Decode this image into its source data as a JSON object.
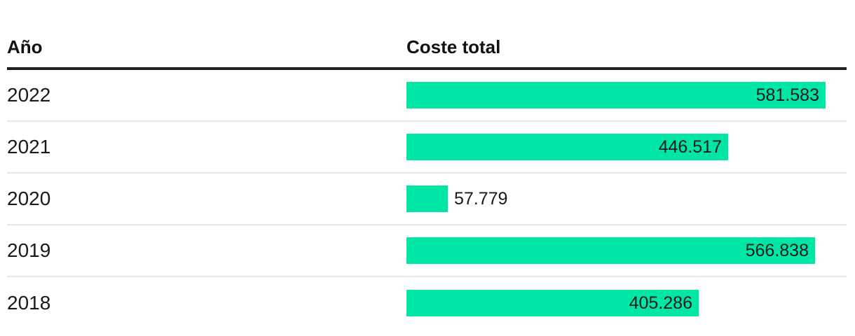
{
  "table": {
    "columns": [
      {
        "label": "Año"
      },
      {
        "label": "Coste total"
      }
    ],
    "rows": [
      {
        "year": "2022",
        "value": 581583,
        "value_label": "581.583"
      },
      {
        "year": "2021",
        "value": 446517,
        "value_label": "446.517"
      },
      {
        "year": "2020",
        "value": 57779,
        "value_label": "57.779"
      },
      {
        "year": "2019",
        "value": 566838,
        "value_label": "566.838"
      },
      {
        "year": "2018",
        "value": 405286,
        "value_label": "405.286"
      }
    ]
  },
  "chart_data": {
    "type": "bar",
    "orientation": "horizontal",
    "title": "",
    "xlabel": "Coste total",
    "ylabel": "Año",
    "categories": [
      "2022",
      "2021",
      "2020",
      "2019",
      "2018"
    ],
    "values": [
      581583,
      446517,
      57779,
      566838,
      405286
    ],
    "value_labels": [
      "581.583",
      "446.517",
      "57.779",
      "566.838",
      "405.286"
    ],
    "xlim": [
      0,
      581583
    ],
    "grid": false,
    "legend": false,
    "bar_color": "#00e7a5"
  },
  "colors": {
    "bar": "#00e7a5",
    "header_rule": "#1f1f1f",
    "row_separator": "#e7e7e7",
    "text": "#1a1a1a"
  }
}
